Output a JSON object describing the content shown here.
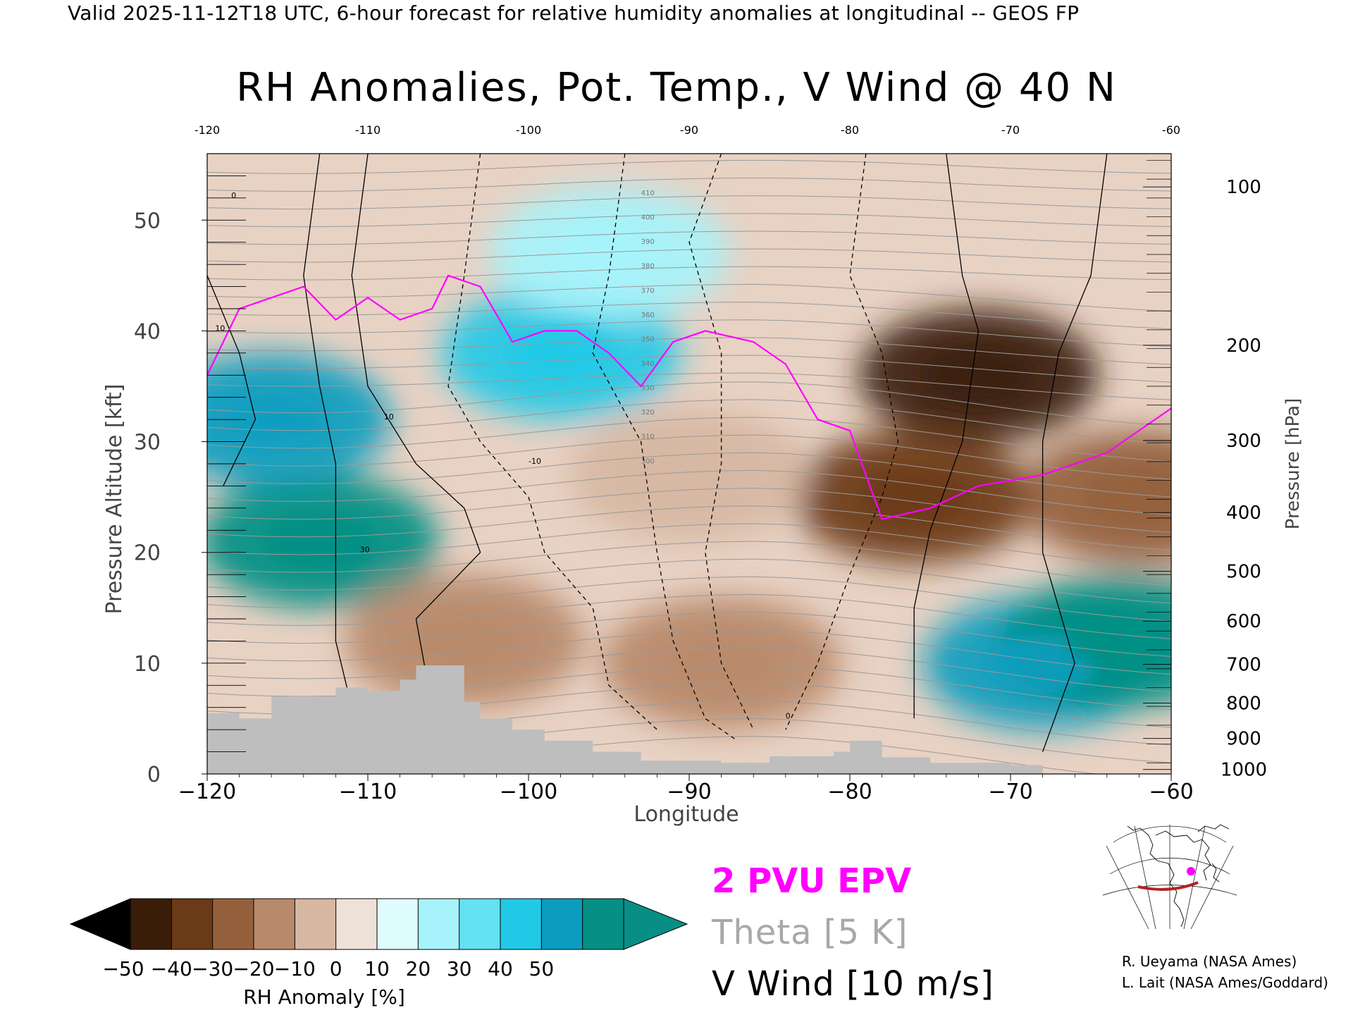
{
  "header": "Valid 2025-11-12T18 UTC, 6-hour forecast for relative humidity anomalies at longitudinal -- GEOS FP",
  "chart_data": {
    "type": "heatmap",
    "title": "RH Anomalies, Pot. Temp., V Wind @ 40 N",
    "xlabel": "Longitude",
    "ylabel": "Pressure Altitude [kft]",
    "ylabel_right": "Pressure [hPa]",
    "xlim": [
      -120,
      -60
    ],
    "ylim": [
      0,
      56
    ],
    "x_ticks": [
      "−120",
      "−110",
      "−100",
      "−90",
      "−80",
      "−70",
      "−60"
    ],
    "x_top_ticks": [
      "-120",
      "-110",
      "-100",
      "-90",
      "-80",
      "-70",
      "-60"
    ],
    "y_ticks": [
      "0",
      "10",
      "20",
      "30",
      "40",
      "50"
    ],
    "y_tick_values": [
      0,
      10,
      20,
      30,
      40,
      50
    ],
    "pressure_ticks": [
      {
        "label": "100",
        "kft": 53.0
      },
      {
        "label": "200",
        "kft": 38.7
      },
      {
        "label": "300",
        "kft": 30.1
      },
      {
        "label": "400",
        "kft": 23.6
      },
      {
        "label": "500",
        "kft": 18.3
      },
      {
        "label": "600",
        "kft": 13.8
      },
      {
        "label": "700",
        "kft": 9.9
      },
      {
        "label": "800",
        "kft": 6.4
      },
      {
        "label": "900",
        "kft": 3.2
      },
      {
        "label": "1000",
        "kft": 0.4
      }
    ],
    "theta_contour_labels": [
      "410",
      "400",
      "390",
      "380",
      "370",
      "360",
      "350",
      "340",
      "330",
      "320",
      "310",
      "300"
    ],
    "vwind_contour_labels": [
      "0",
      "10",
      "-10",
      "30"
    ],
    "rh_anomaly_regions": [
      {
        "lon": -113,
        "alt": 21,
        "value": 50
      },
      {
        "lon": -116,
        "alt": 32,
        "value": 40
      },
      {
        "lon": -98,
        "alt": 38,
        "value": 35
      },
      {
        "lon": -95,
        "alt": 47,
        "value": 15
      },
      {
        "lon": -72,
        "alt": 36,
        "value": -50
      },
      {
        "lon": -76,
        "alt": 25,
        "value": -45
      },
      {
        "lon": -90,
        "alt": 27,
        "value": -20
      },
      {
        "lon": -104,
        "alt": 12,
        "value": -25
      },
      {
        "lon": -88,
        "alt": 10,
        "value": -30
      },
      {
        "lon": -68,
        "alt": 10,
        "value": 40
      },
      {
        "lon": -63,
        "alt": 12,
        "value": 50
      },
      {
        "lon": -62,
        "alt": 25,
        "value": -35
      }
    ],
    "epv_2pvu_line": [
      {
        "lon": -120,
        "alt": 36
      },
      {
        "lon": -118,
        "alt": 42
      },
      {
        "lon": -116,
        "alt": 43
      },
      {
        "lon": -114,
        "alt": 44
      },
      {
        "lon": -112,
        "alt": 41
      },
      {
        "lon": -110,
        "alt": 43
      },
      {
        "lon": -108,
        "alt": 41
      },
      {
        "lon": -106,
        "alt": 42
      },
      {
        "lon": -105,
        "alt": 45
      },
      {
        "lon": -103,
        "alt": 44
      },
      {
        "lon": -101,
        "alt": 39
      },
      {
        "lon": -99,
        "alt": 40
      },
      {
        "lon": -97,
        "alt": 40
      },
      {
        "lon": -95,
        "alt": 38
      },
      {
        "lon": -93,
        "alt": 35
      },
      {
        "lon": -91,
        "alt": 39
      },
      {
        "lon": -89,
        "alt": 40
      },
      {
        "lon": -86,
        "alt": 39
      },
      {
        "lon": -84,
        "alt": 37
      },
      {
        "lon": -82,
        "alt": 32
      },
      {
        "lon": -80,
        "alt": 31
      },
      {
        "lon": -79,
        "alt": 27
      },
      {
        "lon": -78,
        "alt": 23
      },
      {
        "lon": -75,
        "alt": 24
      },
      {
        "lon": -72,
        "alt": 26
      },
      {
        "lon": -68,
        "alt": 27
      },
      {
        "lon": -64,
        "alt": 29
      },
      {
        "lon": -62,
        "alt": 31
      },
      {
        "lon": -60,
        "alt": 33
      }
    ],
    "terrain": [
      {
        "lon": -120,
        "alt": 5.5
      },
      {
        "lon": -118,
        "alt": 5
      },
      {
        "lon": -116,
        "alt": 7
      },
      {
        "lon": -114,
        "alt": 7
      },
      {
        "lon": -112,
        "alt": 7.8
      },
      {
        "lon": -110,
        "alt": 7.5
      },
      {
        "lon": -108,
        "alt": 8.5
      },
      {
        "lon": -107,
        "alt": 9.8
      },
      {
        "lon": -105,
        "alt": 9.8
      },
      {
        "lon": -104,
        "alt": 6.5
      },
      {
        "lon": -103,
        "alt": 5
      },
      {
        "lon": -101,
        "alt": 4
      },
      {
        "lon": -99,
        "alt": 3
      },
      {
        "lon": -96,
        "alt": 2
      },
      {
        "lon": -93,
        "alt": 1.2
      },
      {
        "lon": -88,
        "alt": 1
      },
      {
        "lon": -85,
        "alt": 1.6
      },
      {
        "lon": -81,
        "alt": 2
      },
      {
        "lon": -80,
        "alt": 3
      },
      {
        "lon": -78,
        "alt": 1.5
      },
      {
        "lon": -75,
        "alt": 1
      },
      {
        "lon": -70,
        "alt": 0.8
      },
      {
        "lon": -68,
        "alt": 0
      },
      {
        "lon": -60,
        "alt": 0
      }
    ],
    "colorbar": {
      "label": "RH Anomaly [%]",
      "ticks": [
        "−50",
        "−40",
        "−30",
        "−20",
        "−10",
        "0",
        "10",
        "20",
        "30",
        "40",
        "50"
      ],
      "colors": [
        "#3a1d08",
        "#6b3a16",
        "#94603c",
        "#b8896a",
        "#d6b7a2",
        "#eee2d8",
        "#dffcff",
        "#a6f3fb",
        "#63e2f2",
        "#22c9e6",
        "#0a9dbf",
        "#068f84"
      ],
      "under_color": "#000000",
      "over_color": "#088f85"
    },
    "legend": [
      "2 PVU EPV",
      "Theta [5 K]",
      "V Wind [10 m/s]"
    ]
  },
  "credits": [
    "R. Ueyama (NASA Ames)",
    "L. Lait (NASA Ames/Goddard)"
  ],
  "colors": {
    "epv": "#ff00ff",
    "theta": "#a8a8a8",
    "vwind": "#000000",
    "terrain": "#bebebe",
    "map_track": "#b22222",
    "map_marker": "#ff00ff"
  }
}
